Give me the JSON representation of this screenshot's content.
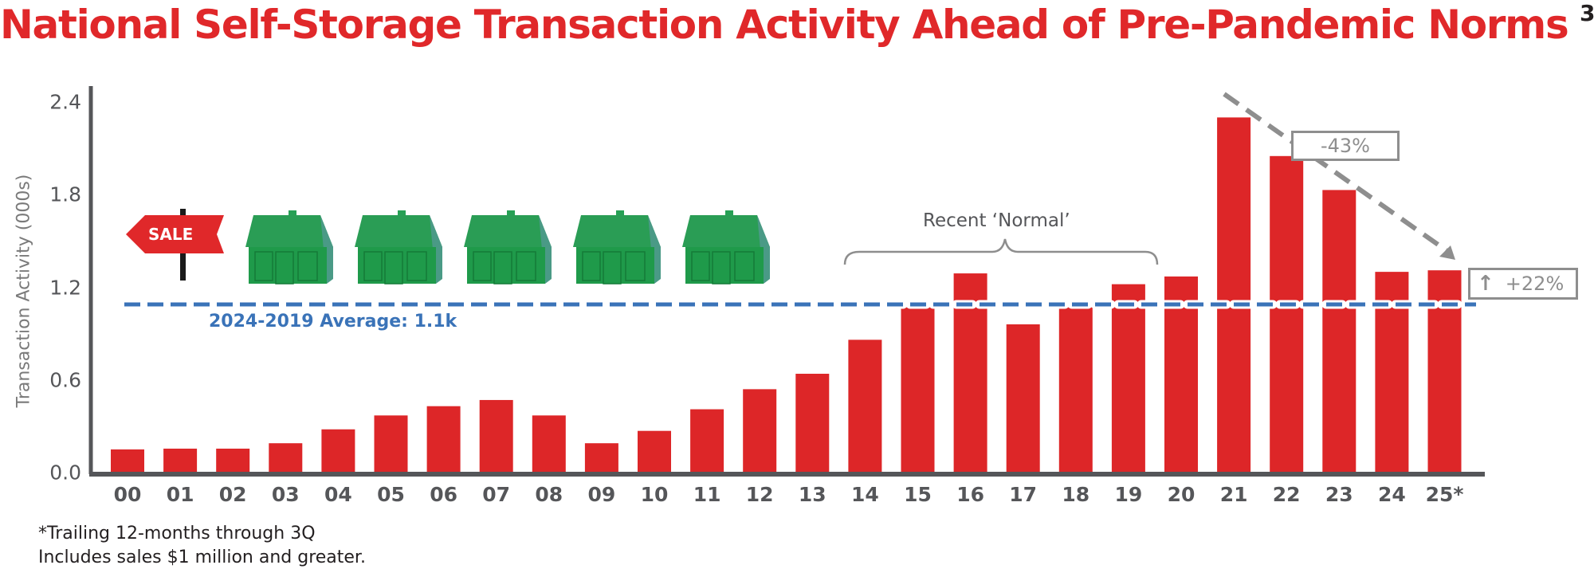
{
  "title": "National Self-Storage Transaction Activity Ahead of Pre-Pandemic Norms",
  "title_superscript": "3",
  "footnotes": [
    "*Trailing 12-months through 3Q",
    "Includes sales $1 million and greater."
  ],
  "annotations": {
    "average_label": "2024-2019 Average: 1.1k",
    "recent_normal_label": "Recent ‘Normal’",
    "decline_label": "-43%",
    "increase_label": "+22%",
    "sale_sign_text": "SALE"
  },
  "colors": {
    "title": "#e0282a",
    "bar": "#dd2628",
    "average_line": "#3a73b8",
    "axis": "#555659",
    "annotation": "#8e8e8e",
    "house": "#1f9a4a"
  },
  "chart_data": {
    "type": "bar",
    "title": "National Self-Storage Transaction Activity Ahead of Pre-Pandemic Norms",
    "xlabel": "",
    "ylabel": "Transaction Activity (000s)",
    "ylim": [
      0,
      2.4
    ],
    "yticks": [
      "0.0",
      "0.6",
      "1.2",
      "1.8",
      "2.4"
    ],
    "grid": false,
    "legend": null,
    "categories": [
      "00",
      "01",
      "02",
      "03",
      "04",
      "05",
      "06",
      "07",
      "08",
      "09",
      "10",
      "11",
      "12",
      "13",
      "14",
      "15",
      "16",
      "17",
      "18",
      "19",
      "20",
      "21",
      "22",
      "23",
      "24",
      "25*"
    ],
    "values": [
      0.15,
      0.155,
      0.155,
      0.19,
      0.28,
      0.37,
      0.43,
      0.47,
      0.37,
      0.19,
      0.27,
      0.41,
      0.54,
      0.64,
      0.86,
      1.07,
      1.29,
      0.96,
      1.07,
      1.22,
      1.27,
      2.3,
      2.05,
      1.83,
      1.3,
      1.31
    ],
    "reference_lines": [
      {
        "label": "2024-2019 Average: 1.1k",
        "value": 1.1,
        "style": "dashed",
        "color": "#3a73b8"
      }
    ],
    "annotations": [
      {
        "text": "Recent ‘Normal’",
        "type": "brace",
        "span": [
          "14",
          "19"
        ]
      },
      {
        "text": "-43%",
        "type": "dashed-arrow",
        "from": "21",
        "to": "25*"
      },
      {
        "text": "+22%",
        "type": "up-arrow",
        "at": "25*"
      }
    ]
  }
}
